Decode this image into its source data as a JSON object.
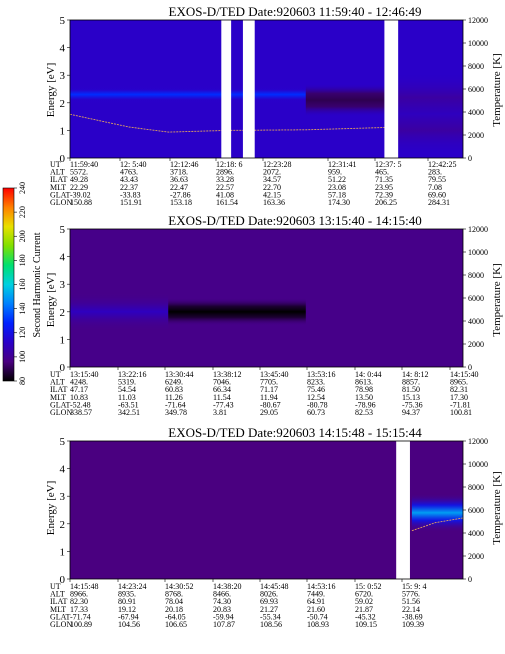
{
  "chart_data": [
    {
      "type": "heatmap",
      "title": "EXOS-D/TED   Date:920603   11:59:40 - 12:46:49",
      "ylabel": "Energy [eV]",
      "ylim": [
        0,
        5
      ],
      "y_ticks": [
        "0",
        "1",
        "2",
        "3",
        "4",
        "5"
      ],
      "y2label": "Temperature [K]",
      "y2lim": [
        0,
        12000
      ],
      "y2_ticks": [
        "0",
        "2000",
        "4000",
        "6000",
        "8000",
        "10000",
        "12000"
      ],
      "data_gaps": [
        [
          0.385,
          0.41
        ],
        [
          0.44,
          0.47
        ],
        [
          0.8,
          0.835
        ]
      ],
      "features": [
        {
          "name": "second harmonic band",
          "x": [
            0.0,
            0.6
          ],
          "energy_center": 2.3,
          "energy_width": 0.9,
          "intensity": 130
        },
        {
          "name": "second harmonic band",
          "x": [
            0.6,
            0.8
          ],
          "energy_center": 2.1,
          "energy_width": 1.2,
          "intensity": 90
        },
        {
          "name": "broad emission",
          "x": [
            0.835,
            1.0
          ],
          "energy_center": 1.6,
          "energy_width": 3.0,
          "intensity": 110
        }
      ],
      "temperature_curve": [
        [
          0.0,
          3800
        ],
        [
          0.15,
          2700
        ],
        [
          0.25,
          2250
        ],
        [
          0.4,
          2400
        ],
        [
          0.6,
          2450
        ],
        [
          0.8,
          2650
        ]
      ],
      "orbit_header": [
        "UT",
        "ALT",
        "ILAT",
        "MLT",
        "GLAT",
        "GLON"
      ],
      "orbit_columns": [
        [
          "11:59:40",
          "5572.",
          "49.28",
          "22.29",
          "-39.02",
          "150.88"
        ],
        [
          "12: 5:40",
          "4763.",
          "43.43",
          "22.37",
          "-33.83",
          "151.91"
        ],
        [
          "12:12:46",
          "3718.",
          "36.63",
          "22.47",
          "-27.86",
          "153.18"
        ],
        [
          "12:18: 6",
          "2896.",
          "33.28",
          "22.57",
          "41.08",
          "161.54"
        ],
        [
          "12:23:28",
          "2072.",
          "34.57",
          "22.70",
          "42.15",
          "163.36"
        ],
        [
          "12:31:41",
          "959.",
          "51.22",
          "23.08",
          "57.18",
          "174.30"
        ],
        [
          "12:37: 5",
          "465.",
          "71.35",
          "23.95",
          "72.39",
          "206.25"
        ],
        [
          "12:42:25",
          "283.",
          "79.55",
          "7.08",
          "69.60",
          "284.31"
        ]
      ]
    },
    {
      "type": "heatmap",
      "title": "EXOS-D/TED   Date:920603   13:15:40 - 14:15:40",
      "ylabel": "Energy [eV]",
      "ylim": [
        0,
        5
      ],
      "y_ticks": [
        "0",
        "1",
        "2",
        "3",
        "4",
        "5"
      ],
      "y2label": "Temperature [K]",
      "y2lim": [
        0,
        12000
      ],
      "y2_ticks": [
        "0",
        "2000",
        "4000",
        "6000",
        "8000",
        "10000",
        "12000"
      ],
      "data_gaps": [],
      "features": [
        {
          "name": "second harmonic band",
          "x": [
            0.0,
            0.25
          ],
          "energy_center": 2.0,
          "energy_width": 1.4,
          "intensity": 110
        },
        {
          "name": "second harmonic band",
          "x": [
            0.25,
            0.6
          ],
          "energy_center": 2.0,
          "energy_width": 1.0,
          "intensity": 75
        }
      ],
      "temperature_curve": [],
      "orbit_header": [
        "UT",
        "ALT",
        "ILAT",
        "MLT",
        "GLAT",
        "GLON"
      ],
      "orbit_columns": [
        [
          "13:15:40",
          "4248.",
          "47.17",
          "10.83",
          "-52.48",
          "338.57"
        ],
        [
          "13:22:16",
          "5319.",
          "54.54",
          "11.03",
          "-63.51",
          "342.51"
        ],
        [
          "13:30:44",
          "6249.",
          "60.83",
          "11.26",
          "-71.64",
          "349.78"
        ],
        [
          "13:38:12",
          "7046.",
          "66.34",
          "11.54",
          "-77.43",
          "3.81"
        ],
        [
          "13:45:40",
          "7705.",
          "71.17",
          "11.94",
          "-80.67",
          "29.05"
        ],
        [
          "13:53:16",
          "8233.",
          "75.46",
          "12.54",
          "-80.78",
          "60.73"
        ],
        [
          "14: 0:44",
          "8613.",
          "78.98",
          "13.50",
          "-78.96",
          "82.53"
        ],
        [
          "14: 8:12",
          "8857.",
          "81.50",
          "15.13",
          "-75.36",
          "94.37"
        ],
        [
          "14:15:40",
          "8965.",
          "82.31",
          "17.30",
          "-71.81",
          "100.81"
        ]
      ]
    },
    {
      "type": "heatmap",
      "title": "EXOS-D/TED   Date:920603   14:15:48 - 15:15:44",
      "ylabel": "Energy [eV]",
      "ylim": [
        0,
        5
      ],
      "y_ticks": [
        "0",
        "1",
        "2",
        "3",
        "4",
        "5"
      ],
      "y2label": "Temperature [K]",
      "y2lim": [
        0,
        12000
      ],
      "y2_ticks": [
        "0",
        "2000",
        "4000",
        "6000",
        "8000",
        "10000",
        "12000"
      ],
      "data_gaps": [
        [
          0.83,
          0.865
        ]
      ],
      "features": [
        {
          "name": "hot emission",
          "x": [
            0.87,
            1.0
          ],
          "energy_center": 2.4,
          "energy_width": 1.4,
          "intensity": 150
        }
      ],
      "temperature_curve": [
        [
          0.87,
          4200
        ],
        [
          0.93,
          4900
        ],
        [
          1.0,
          5300
        ]
      ],
      "orbit_header": [
        "UT",
        "ALT",
        "ILAT",
        "MLT",
        "GLAT",
        "GLON"
      ],
      "orbit_columns": [
        [
          "14:15:48",
          "8966.",
          "82.30",
          "17.33",
          "-71.74",
          "100.89"
        ],
        [
          "14:23:24",
          "8935.",
          "80.91",
          "19.12",
          "-67.94",
          "104.56"
        ],
        [
          "14:30:52",
          "8768.",
          "78.04",
          "20.18",
          "-64.05",
          "106.65"
        ],
        [
          "14:38:20",
          "8466.",
          "74.30",
          "20.83",
          "-59.94",
          "107.87"
        ],
        [
          "14:45:48",
          "8026.",
          "69.93",
          "21.27",
          "-55.34",
          "108.56"
        ],
        [
          "14:53:16",
          "7449.",
          "64.91",
          "21.60",
          "-50.74",
          "108.93"
        ],
        [
          "15: 0:52",
          "6720.",
          "59.02",
          "21.87",
          "-45.32",
          "109.15"
        ],
        [
          "15: 9: 4",
          "5776.",
          "51.56",
          "22.14",
          "-38.69",
          "109.39"
        ]
      ]
    }
  ],
  "colorbar": {
    "label": "Second Harmonic Current",
    "ticks": [
      "80",
      "100",
      "120",
      "140",
      "160",
      "180",
      "200",
      "220",
      "240"
    ],
    "range": [
      80,
      240
    ],
    "colors": [
      "#000000",
      "#4a0080",
      "#2a00c8",
      "#0020ff",
      "#0080ff",
      "#00d0e0",
      "#00e070",
      "#80e000",
      "#e8e000",
      "#ff8000",
      "#ff0000"
    ]
  }
}
